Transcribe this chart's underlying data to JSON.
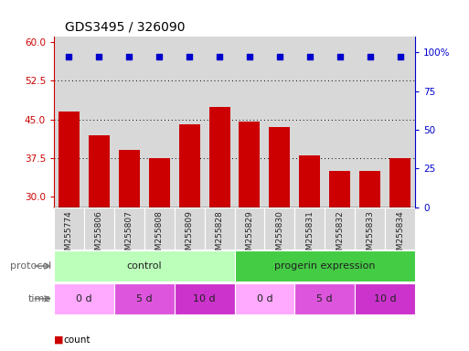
{
  "title": "GDS3495 / 326090",
  "samples": [
    "GSM255774",
    "GSM255806",
    "GSM255807",
    "GSM255808",
    "GSM255809",
    "GSM255828",
    "GSM255829",
    "GSM255830",
    "GSM255831",
    "GSM255832",
    "GSM255833",
    "GSM255834"
  ],
  "bar_values": [
    46.5,
    42.0,
    39.0,
    37.5,
    44.0,
    47.5,
    44.5,
    43.5,
    38.0,
    35.0,
    35.0,
    37.5
  ],
  "dot_values_pct": [
    97,
    97,
    97,
    97,
    97,
    97,
    97,
    97,
    97,
    97,
    97,
    97
  ],
  "bar_color": "#cc0000",
  "dot_color": "#0000cc",
  "ylim_left": [
    28,
    61
  ],
  "ylim_right": [
    0,
    110
  ],
  "yticks_left": [
    30,
    37.5,
    45,
    52.5,
    60
  ],
  "yticks_right": [
    0,
    25,
    50,
    75,
    100
  ],
  "ytick_labels_right": [
    "0",
    "25",
    "50",
    "75",
    "100%"
  ],
  "dotted_grid_values": [
    37.5,
    45.0,
    52.5
  ],
  "protocol_groups": [
    {
      "label": "control",
      "start": 0,
      "end": 6,
      "color": "#bbffbb"
    },
    {
      "label": "progerin expression",
      "start": 6,
      "end": 12,
      "color": "#44cc44"
    }
  ],
  "time_groups": [
    {
      "label": "0 d",
      "start": 0,
      "end": 2,
      "color": "#ffaaff"
    },
    {
      "label": "5 d",
      "start": 2,
      "end": 4,
      "color": "#dd55dd"
    },
    {
      "label": "10 d",
      "start": 4,
      "end": 6,
      "color": "#cc33cc"
    },
    {
      "label": "0 d",
      "start": 6,
      "end": 8,
      "color": "#ffaaff"
    },
    {
      "label": "5 d",
      "start": 8,
      "end": 10,
      "color": "#dd55dd"
    },
    {
      "label": "10 d",
      "start": 10,
      "end": 12,
      "color": "#cc33cc"
    }
  ],
  "legend_count_color": "#cc0000",
  "legend_dot_color": "#0000cc",
  "protocol_label": "protocol",
  "time_label": "time",
  "background_color": "#ffffff",
  "sample_bg_color": "#d8d8d8",
  "bar_bottom": 28
}
